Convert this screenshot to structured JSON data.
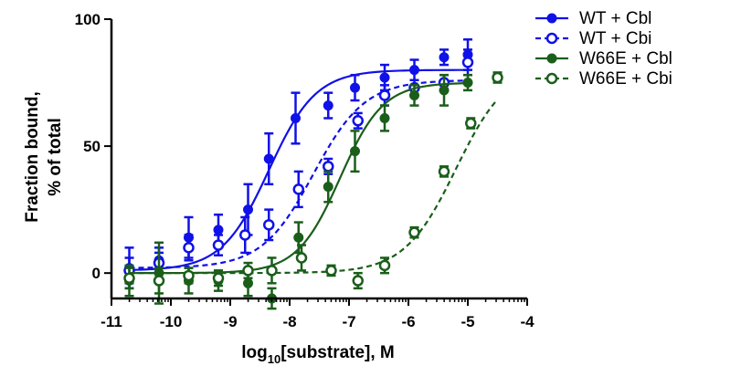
{
  "chart_data": {
    "type": "scatter",
    "xlabel": {
      "main": "log",
      "sub": "10",
      "rest": "[substrate], M"
    },
    "ylabel": {
      "line1": "Fraction bound,",
      "line2": "% of total"
    },
    "xlim": [
      -11,
      -4
    ],
    "ylim": [
      -10,
      100
    ],
    "x_ticks": [
      -11,
      -10,
      -9,
      -8,
      -7,
      -6,
      -5,
      -4
    ],
    "x_tick_labels": [
      "-11",
      "-10",
      "-9",
      "-8",
      "-7",
      "-6",
      "-5",
      "-4"
    ],
    "y_ticks": [
      0,
      50,
      100
    ],
    "y_tick_labels": [
      "0",
      "50",
      "100"
    ],
    "legend_position": "right",
    "series": [
      {
        "name": "WT + Cbl",
        "color": "#1010e8",
        "marker": "filled",
        "line": "solid",
        "fit": {
          "bottom": 1,
          "top": 80,
          "logEC50": -8.35,
          "hill": 1.1,
          "x_range": [
            -10.7,
            -5.0
          ]
        },
        "points": [
          {
            "x": -10.7,
            "y": 2,
            "err": 8
          },
          {
            "x": -10.2,
            "y": 5,
            "err": 5
          },
          {
            "x": -9.7,
            "y": 14,
            "err": 8
          },
          {
            "x": -9.2,
            "y": 17,
            "err": 6
          },
          {
            "x": -8.7,
            "y": 25,
            "err": 10
          },
          {
            "x": -8.35,
            "y": 45,
            "err": 10
          },
          {
            "x": -7.9,
            "y": 61,
            "err": 10
          },
          {
            "x": -7.35,
            "y": 66,
            "err": 5
          },
          {
            "x": -6.9,
            "y": 73,
            "err": 5
          },
          {
            "x": -6.4,
            "y": 77,
            "err": 5
          },
          {
            "x": -5.9,
            "y": 80,
            "err": 4
          },
          {
            "x": -5.4,
            "y": 85,
            "err": 3
          },
          {
            "x": -5.0,
            "y": 86,
            "err": 6
          }
        ]
      },
      {
        "name": "WT + Cbi",
        "color": "#1010e8",
        "marker": "open",
        "line": "dashed",
        "fit": {
          "bottom": 2,
          "top": 76,
          "logEC50": -7.6,
          "hill": 1.0,
          "x_range": [
            -10.7,
            -5.0
          ]
        },
        "points": [
          {
            "x": -10.7,
            "y": 1,
            "err": 5
          },
          {
            "x": -10.2,
            "y": 4,
            "err": 4
          },
          {
            "x": -9.7,
            "y": 10,
            "err": 5
          },
          {
            "x": -9.2,
            "y": 11,
            "err": 4
          },
          {
            "x": -8.75,
            "y": 15,
            "err": 7
          },
          {
            "x": -8.35,
            "y": 19,
            "err": 6
          },
          {
            "x": -7.85,
            "y": 33,
            "err": 7
          },
          {
            "x": -7.35,
            "y": 42,
            "err": 3
          },
          {
            "x": -6.85,
            "y": 60,
            "err": 3
          },
          {
            "x": -6.4,
            "y": 70,
            "err": 4
          },
          {
            "x": -5.9,
            "y": 73,
            "err": 3
          },
          {
            "x": -5.4,
            "y": 75,
            "err": 3
          },
          {
            "x": -5.0,
            "y": 83,
            "err": 5
          }
        ]
      },
      {
        "name": "W66E + Cbl",
        "color": "#1a5e1a",
        "marker": "filled",
        "line": "solid",
        "fit": {
          "bottom": 0,
          "top": 75,
          "logEC50": -7.15,
          "hill": 1.2,
          "x_range": [
            -10.7,
            -5.0
          ]
        },
        "points": [
          {
            "x": -10.7,
            "y": -3,
            "err": 6
          },
          {
            "x": -10.2,
            "y": 0,
            "err": 12
          },
          {
            "x": -9.7,
            "y": -3,
            "err": 5
          },
          {
            "x": -9.2,
            "y": -3,
            "err": 4
          },
          {
            "x": -8.7,
            "y": -4,
            "err": 5
          },
          {
            "x": -8.3,
            "y": -10,
            "err": 4
          },
          {
            "x": -7.85,
            "y": 14,
            "err": 6
          },
          {
            "x": -7.35,
            "y": 34,
            "err": 6
          },
          {
            "x": -6.9,
            "y": 48,
            "err": 8
          },
          {
            "x": -6.4,
            "y": 61,
            "err": 5
          },
          {
            "x": -5.9,
            "y": 70,
            "err": 4
          },
          {
            "x": -5.4,
            "y": 72,
            "err": 6
          },
          {
            "x": -5.0,
            "y": 75,
            "err": 3
          }
        ]
      },
      {
        "name": "W66E + Cbi",
        "color": "#1a5e1a",
        "marker": "open",
        "line": "dashed",
        "fit": {
          "bottom": 0,
          "top": 82,
          "logEC50": -5.2,
          "hill": 1.0,
          "x_range": [
            -10.7,
            -4.5
          ]
        },
        "points": [
          {
            "x": -10.7,
            "y": -2,
            "err": 4
          },
          {
            "x": -10.2,
            "y": -3,
            "err": 5
          },
          {
            "x": -9.7,
            "y": -1,
            "err": 3
          },
          {
            "x": -9.2,
            "y": -2,
            "err": 3
          },
          {
            "x": -8.7,
            "y": 1,
            "err": 3
          },
          {
            "x": -8.3,
            "y": 1,
            "err": 5
          },
          {
            "x": -7.8,
            "y": 6,
            "err": 5
          },
          {
            "x": -7.3,
            "y": 1,
            "err": 2
          },
          {
            "x": -6.85,
            "y": -3,
            "err": 3
          },
          {
            "x": -6.4,
            "y": 3,
            "err": 3
          },
          {
            "x": -5.9,
            "y": 16,
            "err": 2
          },
          {
            "x": -5.4,
            "y": 40,
            "err": 2
          },
          {
            "x": -4.95,
            "y": 59,
            "err": 2
          },
          {
            "x": -4.5,
            "y": 77,
            "err": 2
          }
        ]
      }
    ]
  }
}
